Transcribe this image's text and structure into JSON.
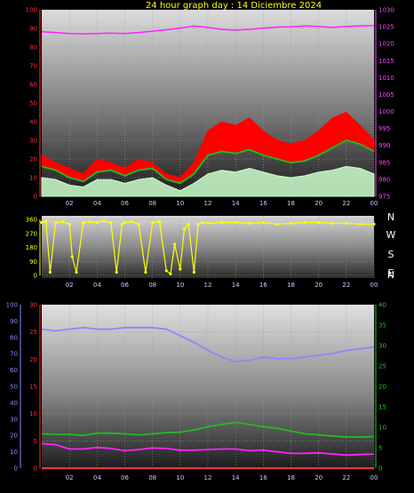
{
  "title": "24 hour graph day : 14 Diciembre 2024",
  "colors": {
    "wind_gust": "#ff0000",
    "wind_avg": "#22bb22",
    "wind_speed": "#ccffcc",
    "pressure": "#ff22ff",
    "direction": "#ffff00",
    "humidity": "#8888ff",
    "temp": "#ff3333",
    "dewpoint": "#ff22ff",
    "rain": "#00ee00"
  },
  "x_tick_labels": [
    "02",
    "04",
    "06",
    "08",
    "10",
    "12",
    "14",
    "16",
    "18",
    "20",
    "22",
    "00"
  ],
  "compass_labels": [
    "N",
    "W",
    "S",
    "E",
    "N"
  ],
  "chart_data": [
    {
      "type": "line",
      "name": "wind-pressure",
      "x_hours": [
        0,
        1,
        2,
        3,
        4,
        5,
        6,
        7,
        8,
        9,
        10,
        11,
        12,
        13,
        14,
        15,
        16,
        17,
        18,
        19,
        20,
        21,
        22,
        23,
        24
      ],
      "y_left_ticks": [
        "0",
        "10",
        "20",
        "30",
        "40",
        "50",
        "60",
        "70",
        "80",
        "90",
        "100"
      ],
      "y_left_range": [
        0,
        100
      ],
      "y_right_ticks": [
        "975",
        "980",
        "985",
        "990",
        "995",
        "1000",
        "1005",
        "1010",
        "1015",
        "1020",
        "1025",
        "1030"
      ],
      "y_right_range": [
        975,
        1030
      ],
      "series": [
        {
          "key": "gust",
          "values": [
            22,
            18,
            15,
            12,
            20,
            18,
            15,
            20,
            18,
            12,
            10,
            18,
            35,
            40,
            38,
            42,
            35,
            30,
            28,
            30,
            35,
            42,
            45,
            38,
            30
          ]
        },
        {
          "key": "avg",
          "values": [
            16,
            14,
            10,
            8,
            13,
            14,
            11,
            14,
            15,
            9,
            7,
            12,
            22,
            24,
            23,
            25,
            22,
            20,
            18,
            19,
            22,
            26,
            30,
            28,
            24
          ]
        },
        {
          "key": "speed",
          "values": [
            10,
            9,
            6,
            5,
            9,
            9,
            7,
            9,
            10,
            6,
            3,
            7,
            12,
            14,
            13,
            15,
            13,
            11,
            10,
            11,
            13,
            14,
            16,
            15,
            12
          ]
        },
        {
          "key": "pressure",
          "values": [
            1023.5,
            1023.3,
            1023.0,
            1022.9,
            1023.0,
            1023.1,
            1023.0,
            1023.3,
            1023.7,
            1024.1,
            1024.6,
            1025.2,
            1024.8,
            1024.2,
            1024.0,
            1024.2,
            1024.6,
            1024.9,
            1025.0,
            1025.2,
            1025.1,
            1024.8,
            1025.1,
            1025.2,
            1025.3
          ]
        }
      ]
    },
    {
      "type": "scatter",
      "name": "wind-direction",
      "y_ticks": [
        "0",
        "90",
        "180",
        "270",
        "360"
      ],
      "y_range": [
        0,
        360
      ],
      "x_hours": [
        0,
        0.3,
        0.6,
        1,
        1.5,
        2,
        2.2,
        2.5,
        3,
        3.5,
        4,
        4.5,
        5,
        5.4,
        5.8,
        6,
        6.5,
        7,
        7.5,
        8,
        8.5,
        9,
        9.3,
        9.6,
        10,
        10.3,
        10.6,
        11,
        11.3,
        11.6,
        12,
        13,
        14,
        15,
        16,
        17,
        18,
        19,
        20,
        21,
        22,
        23,
        24
      ],
      "values": [
        340,
        350,
        20,
        340,
        345,
        330,
        120,
        20,
        340,
        345,
        340,
        350,
        340,
        20,
        330,
        340,
        345,
        330,
        20,
        340,
        345,
        30,
        10,
        200,
        40,
        300,
        330,
        20,
        330,
        340,
        335,
        340,
        340,
        335,
        340,
        330,
        335,
        340,
        340,
        335,
        335,
        330,
        330
      ]
    },
    {
      "type": "line",
      "name": "temp-humidity-rain",
      "x_hours": [
        0,
        1,
        2,
        3,
        4,
        5,
        6,
        7,
        8,
        9,
        10,
        11,
        12,
        13,
        14,
        15,
        16,
        17,
        18,
        19,
        20,
        21,
        22,
        23,
        24
      ],
      "y_far_left_ticks": [
        "0",
        "10",
        "20",
        "30",
        "40",
        "50",
        "60",
        "70",
        "80",
        "90",
        "100"
      ],
      "y_far_left_range": [
        0,
        100
      ],
      "y_left_ticks": [
        "0",
        "5",
        "10",
        "15",
        "20",
        "25",
        "30"
      ],
      "y_left_range": [
        0,
        30
      ],
      "y_right_ticks": [
        "0",
        "5",
        "10",
        "15",
        "20",
        "25",
        "30",
        "35",
        "40"
      ],
      "y_right_range": [
        0,
        40
      ],
      "series": [
        {
          "key": "humidity",
          "values": [
            85,
            84,
            85,
            86,
            85,
            85,
            86,
            86,
            86,
            85,
            81,
            77,
            72,
            68,
            65,
            66,
            68,
            67,
            67,
            68,
            69,
            70,
            72,
            73,
            74
          ]
        },
        {
          "key": "temp",
          "values": [
            6.3,
            6.2,
            6.2,
            6.0,
            6.4,
            6.4,
            6.3,
            6.1,
            6.3,
            6.5,
            6.6,
            7.0,
            7.6,
            8.0,
            8.4,
            8.0,
            7.6,
            7.3,
            6.8,
            6.3,
            6.1,
            5.9,
            5.7,
            5.7,
            5.8
          ]
        },
        {
          "key": "dewpoint",
          "values": [
            4.5,
            4.3,
            3.5,
            3.5,
            3.8,
            3.6,
            3.2,
            3.4,
            3.7,
            3.6,
            3.3,
            3.3,
            3.4,
            3.5,
            3.5,
            3.2,
            3.3,
            3.0,
            2.7,
            2.7,
            2.8,
            2.6,
            2.4,
            2.5,
            2.6
          ]
        },
        {
          "key": "rain",
          "values": [
            0,
            0,
            0,
            0,
            0,
            0,
            0,
            0,
            0,
            0,
            0,
            0,
            0,
            0,
            0,
            0,
            0,
            0,
            0,
            0,
            0,
            0,
            0,
            0,
            0
          ]
        }
      ]
    }
  ]
}
